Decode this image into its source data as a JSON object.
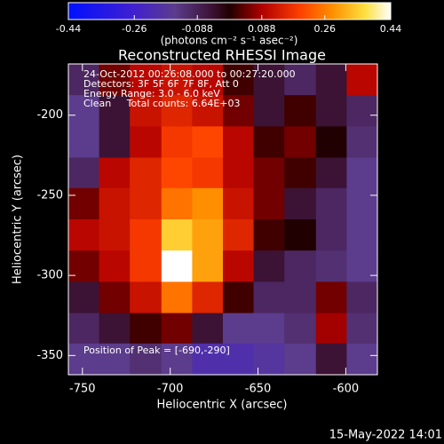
{
  "chart_data": {
    "type": "heatmap",
    "title": "Reconstructed RHESSI Image",
    "x_label": "Heliocentric X (arcsec)",
    "y_label": "Heliocentric Y (arcsec)",
    "annotations": [
      "24-Oct-2012 00:26:08.000 to 00:27:20.000",
      "Detectors: 3F 5F 6F 7F 8F, Att 0",
      "Energy Range: 3.0 - 6.0 keV",
      "Clean     Total counts: 6.64E+03"
    ],
    "peak_label": "Position of Peak = [-690,-290]",
    "footer": "15-May-2022 14:01",
    "colorbar_label": "(photons cm⁻² s⁻¹ asec⁻²)",
    "clim": [
      -0.44,
      0.44
    ],
    "cticks": [
      -0.44,
      -0.26,
      -0.088,
      0.088,
      0.26,
      0.44
    ],
    "colorscale": [
      [
        0,
        "#0010ff"
      ],
      [
        0.2,
        "#4020d0"
      ],
      [
        0.33,
        "#5c3c8c"
      ],
      [
        0.45,
        "#3a1030"
      ],
      [
        0.5,
        "#200000"
      ],
      [
        0.6,
        "#b00000"
      ],
      [
        0.72,
        "#ff4000"
      ],
      [
        0.82,
        "#ff9000"
      ],
      [
        0.92,
        "#ffe040"
      ],
      [
        1,
        "#ffffff"
      ]
    ],
    "xlim": [
      -758,
      -582
    ],
    "ylim": [
      -362,
      -168
    ],
    "xticks": [
      -750,
      -700,
      -650,
      -600
    ],
    "yticks": [
      -350,
      -300,
      -250,
      -200
    ],
    "x": [
      -749,
      -732,
      -714,
      -696,
      -679,
      -661,
      -644,
      -626,
      -608,
      -591
    ],
    "y": [
      -178,
      -197,
      -217,
      -236,
      -255,
      -275,
      -294,
      -314,
      -333,
      -352
    ],
    "z": [
      [
        -0.1,
        0.05,
        0.1,
        0.12,
        0.1,
        0.02,
        -0.05,
        -0.1,
        -0.05,
        0.1
      ],
      [
        -0.15,
        -0.05,
        0.12,
        0.15,
        0.12,
        0.05,
        -0.05,
        0.02,
        -0.05,
        -0.1
      ],
      [
        -0.15,
        -0.05,
        0.1,
        0.18,
        0.2,
        0.1,
        0.02,
        0.05,
        0.0,
        -0.12
      ],
      [
        -0.1,
        0.1,
        0.15,
        0.2,
        0.18,
        0.1,
        0.05,
        0.02,
        -0.05,
        -0.15
      ],
      [
        0.05,
        0.12,
        0.15,
        0.25,
        0.28,
        0.12,
        0.05,
        -0.05,
        -0.1,
        -0.15
      ],
      [
        0.1,
        0.12,
        0.18,
        0.35,
        0.3,
        0.15,
        0.02,
        0.0,
        -0.1,
        -0.15
      ],
      [
        0.05,
        0.1,
        0.18,
        0.44,
        0.3,
        0.1,
        -0.05,
        -0.1,
        -0.12,
        -0.15
      ],
      [
        -0.05,
        0.05,
        0.12,
        0.25,
        0.15,
        0.02,
        -0.1,
        -0.1,
        0.05,
        -0.1
      ],
      [
        -0.1,
        -0.05,
        0.02,
        0.05,
        -0.05,
        -0.15,
        -0.15,
        -0.12,
        0.08,
        -0.12
      ],
      [
        -0.15,
        -0.15,
        -0.12,
        -0.15,
        -0.2,
        -0.2,
        -0.18,
        -0.15,
        -0.05,
        -0.15
      ]
    ]
  }
}
